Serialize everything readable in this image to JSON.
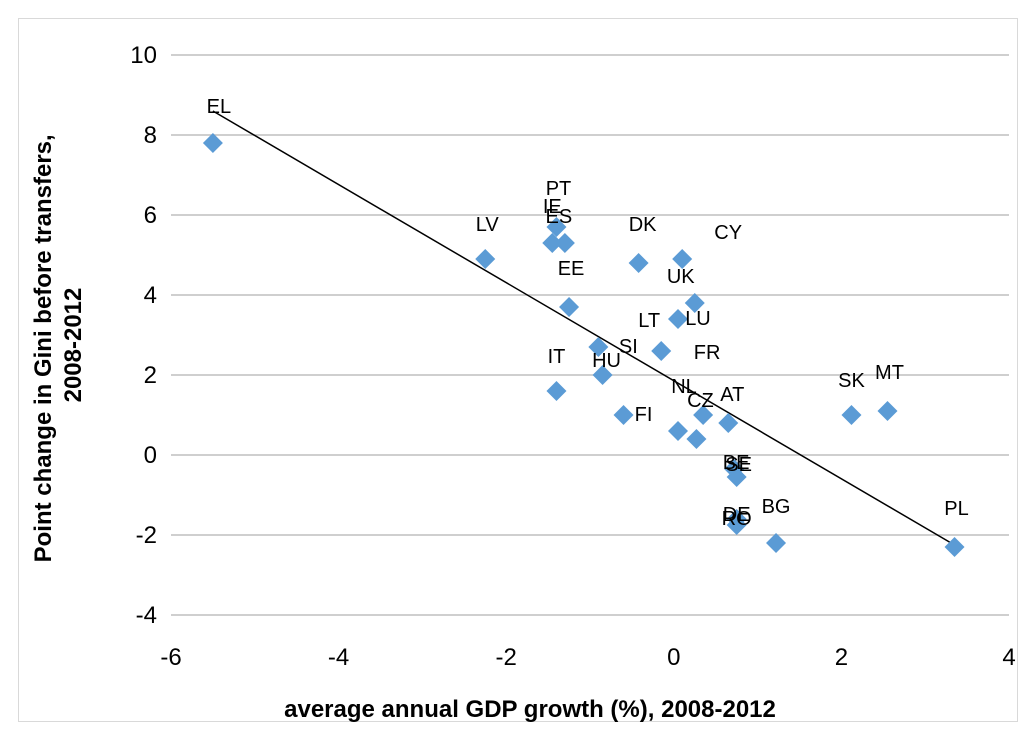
{
  "chart_data": {
    "type": "scatter",
    "title": "",
    "xlabel": "average annual GDP growth (%), 2008-2012",
    "ylabel_lines": [
      "Point change in Gini before transfers,",
      "2008-2012"
    ],
    "xlim": [
      -6,
      4
    ],
    "ylim": [
      -4,
      10
    ],
    "xticks": [
      -6,
      -4,
      -2,
      0,
      2,
      4
    ],
    "yticks": [
      -4,
      -2,
      0,
      2,
      4,
      6,
      8,
      10
    ],
    "grid": "horizontal",
    "legend": "none",
    "marker": "diamond",
    "marker_color": "#5b9bd5",
    "trendline_color": "#000000",
    "trendline": {
      "x": [
        -5.5,
        3.35
      ],
      "y": [
        8.6,
        -2.25
      ]
    },
    "points": [
      {
        "label": "EL",
        "x": -5.5,
        "y": 7.8
      },
      {
        "label": "LV",
        "x": -2.25,
        "y": 4.9
      },
      {
        "label": "PT",
        "x": -1.4,
        "y": 5.7
      },
      {
        "label": "IE",
        "x": -1.45,
        "y": 5.3
      },
      {
        "label": "ES",
        "x": -1.3,
        "y": 5.3
      },
      {
        "label": "EE",
        "x": -1.25,
        "y": 3.7
      },
      {
        "label": "SI",
        "x": -0.9,
        "y": 2.7
      },
      {
        "label": "HU",
        "x": -0.85,
        "y": 2.0
      },
      {
        "label": "IT",
        "x": -1.4,
        "y": 1.6
      },
      {
        "label": "FI",
        "x": -0.6,
        "y": 1.0
      },
      {
        "label": "DK",
        "x": -0.42,
        "y": 4.8
      },
      {
        "label": "LT",
        "x": -0.15,
        "y": 2.6
      },
      {
        "label": "CY",
        "x": 0.1,
        "y": 4.9
      },
      {
        "label": "LU",
        "x": 0.05,
        "y": 3.4
      },
      {
        "label": "UK",
        "x": 0.25,
        "y": 3.8
      },
      {
        "label": "NL",
        "x": 0.05,
        "y": 0.6
      },
      {
        "label": "CZ",
        "x": 0.27,
        "y": 0.4
      },
      {
        "label": "FR",
        "x": 0.35,
        "y": 1.0
      },
      {
        "label": "AT",
        "x": 0.65,
        "y": 0.8
      },
      {
        "label": "BE",
        "x": 0.72,
        "y": -0.35
      },
      {
        "label": "SE",
        "x": 0.75,
        "y": -0.55
      },
      {
        "label": "DE",
        "x": 0.75,
        "y": -1.6
      },
      {
        "label": "RO",
        "x": 0.75,
        "y": -1.75
      },
      {
        "label": "BG",
        "x": 1.22,
        "y": -2.2
      },
      {
        "label": "SK",
        "x": 2.12,
        "y": 1.0
      },
      {
        "label": "MT",
        "x": 2.55,
        "y": 1.1
      },
      {
        "label": "PL",
        "x": 3.35,
        "y": -2.3
      }
    ]
  }
}
